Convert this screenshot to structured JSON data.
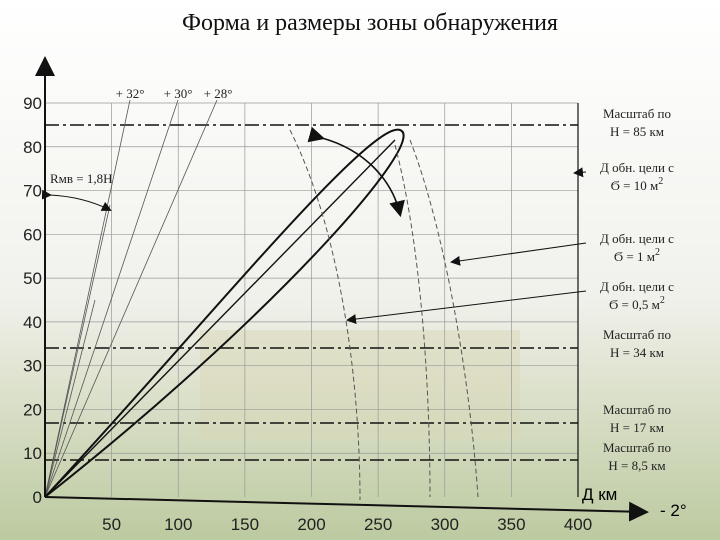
{
  "title": "Форма и размеры зоны обнаружения",
  "y_axis": {
    "ticks": [
      "0",
      "10",
      "20",
      "30",
      "40",
      "50",
      "60",
      "70",
      "80",
      "90"
    ]
  },
  "x_axis": {
    "ticks": [
      "50",
      "100",
      "150",
      "200",
      "250",
      "300",
      "350",
      "400"
    ],
    "unit_label": "Д км",
    "angle_label": "- 2°"
  },
  "angle_labels": [
    "+ 32°",
    "+ 30°",
    "+ 28°"
  ],
  "rmv_label": "Rмв = 1,8H",
  "annotations": [
    {
      "line1": "Масштаб по",
      "line2": "Н = 85 км"
    },
    {
      "line1": "Д обн. цели с",
      "line2": "Ϭ = 10 м",
      "sup": "2"
    },
    {
      "line1": "Д обн. цели с",
      "line2": "Ϭ = 1 м",
      "sup": "2"
    },
    {
      "line1": "Д обн. цели с",
      "line2": "Ϭ = 0,5 м",
      "sup": "2"
    },
    {
      "line1": "Масштаб по",
      "line2": "Н = 34 км"
    },
    {
      "line1": "Масштаб по",
      "line2": "Н = 17 км"
    },
    {
      "line1": "Масштаб по",
      "line2": "Н = 8,5 км"
    }
  ]
}
